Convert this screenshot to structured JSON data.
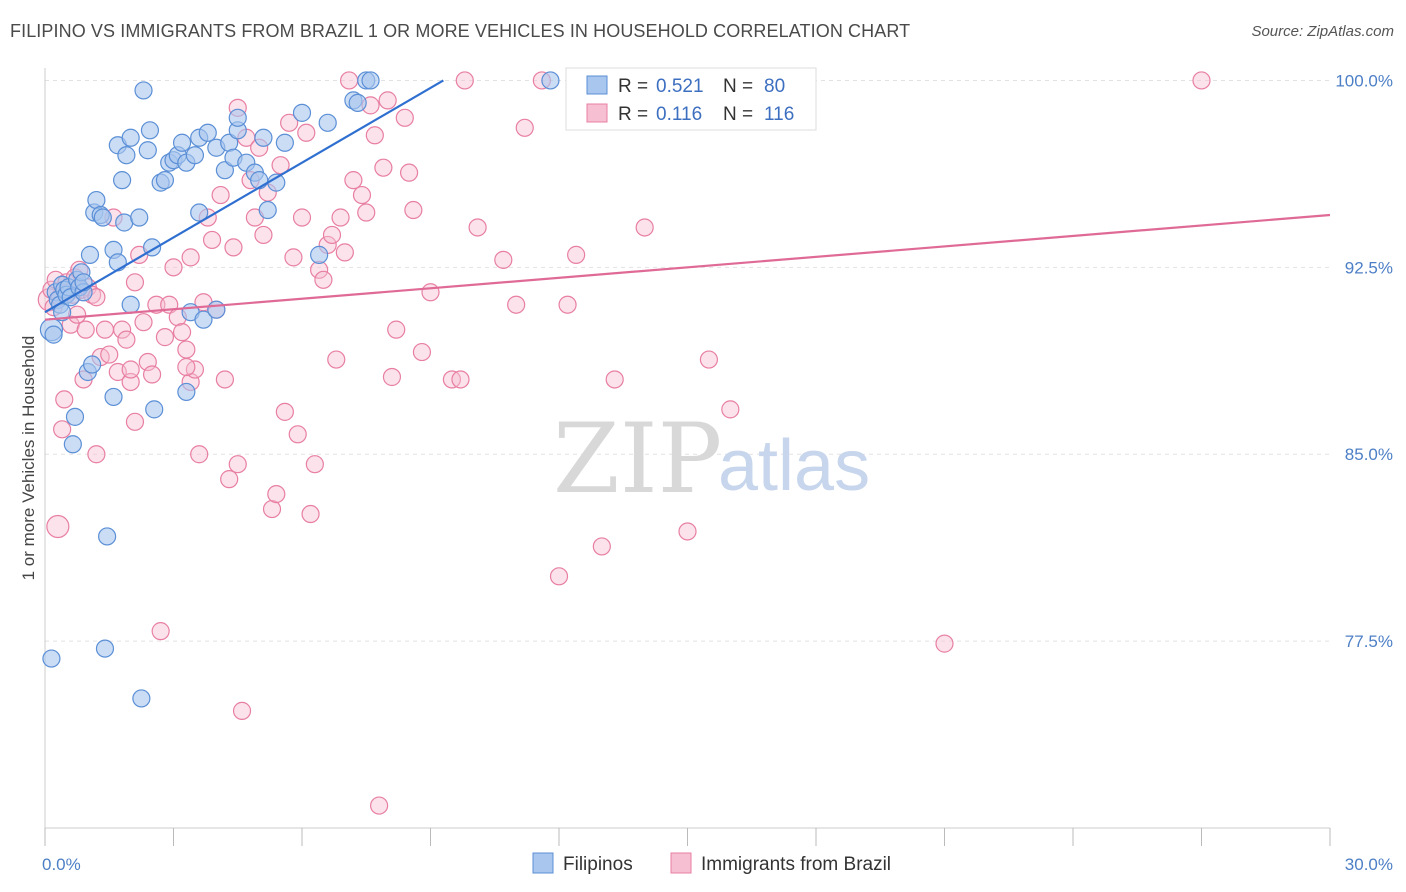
{
  "title": "FILIPINO VS IMMIGRANTS FROM BRAZIL 1 OR MORE VEHICLES IN HOUSEHOLD CORRELATION CHART",
  "source": "Source: ZipAtlas.com",
  "watermark": {
    "zip": "ZIP",
    "atlas": "atlas"
  },
  "colors": {
    "filipinos_fill": "#a9c6ef",
    "filipinos_stroke": "#5b8fd6",
    "filipinos_line": "#2f6fd0",
    "brazil_fill": "#f7bfd2",
    "brazil_stroke": "#e87fa3",
    "brazil_line": "#e06a96",
    "grid": "#e2e2e2",
    "axis_label": "#4d7fc6"
  },
  "legend": {
    "rows": [
      {
        "r_label": "R =",
        "r_value": "0.521",
        "n_label": "N =",
        "n_value": "80"
      },
      {
        "r_label": "R =",
        "r_value": "0.116",
        "n_label": "N =",
        "n_value": "116"
      }
    ]
  },
  "chart_data": {
    "type": "scatter",
    "xlabel": "",
    "ylabel": "1 or more Vehicles in Household",
    "xlim": [
      0,
      30
    ],
    "ylim": [
      70.0,
      100.5
    ],
    "x_tick_labels": [
      {
        "x": 0,
        "label": "0.0%"
      },
      {
        "x": 30,
        "label": "30.0%"
      }
    ],
    "x_minor_ticks": [
      0,
      3,
      6,
      9,
      12,
      15,
      18,
      21,
      24,
      27,
      30
    ],
    "y_ticks": [
      {
        "y": 100.0,
        "label": "100.0%"
      },
      {
        "y": 92.5,
        "label": "92.5%"
      },
      {
        "y": 85.0,
        "label": "85.0%"
      },
      {
        "y": 77.5,
        "label": "77.5%"
      }
    ],
    "grid": true,
    "legend_position": "top-center",
    "series": [
      {
        "name": "Filipinos",
        "trend": {
          "x": [
            0,
            9.3
          ],
          "y": [
            90.7,
            100.0
          ]
        },
        "points": [
          [
            0.15,
            90.0
          ],
          [
            0.2,
            89.8
          ],
          [
            0.25,
            91.5
          ],
          [
            0.3,
            91.2
          ],
          [
            0.35,
            91.0
          ],
          [
            0.4,
            91.8
          ],
          [
            0.45,
            91.6
          ],
          [
            0.5,
            91.4
          ],
          [
            0.55,
            91.7
          ],
          [
            0.6,
            91.3
          ],
          [
            0.65,
            85.4
          ],
          [
            0.7,
            86.5
          ],
          [
            0.75,
            92.0
          ],
          [
            0.8,
            91.7
          ],
          [
            0.85,
            92.3
          ],
          [
            0.9,
            91.5
          ],
          [
            1.0,
            88.3
          ],
          [
            1.05,
            93.0
          ],
          [
            1.1,
            88.6
          ],
          [
            1.15,
            94.7
          ],
          [
            1.2,
            95.2
          ],
          [
            1.3,
            94.6
          ],
          [
            1.35,
            94.5
          ],
          [
            1.4,
            77.2
          ],
          [
            1.45,
            81.7
          ],
          [
            1.6,
            93.2
          ],
          [
            1.6,
            87.3
          ],
          [
            1.7,
            92.7
          ],
          [
            1.7,
            97.4
          ],
          [
            1.8,
            96.0
          ],
          [
            1.85,
            94.3
          ],
          [
            1.9,
            97.0
          ],
          [
            2.0,
            97.7
          ],
          [
            2.0,
            91.0
          ],
          [
            2.2,
            94.5
          ],
          [
            2.25,
            75.2
          ],
          [
            2.3,
            99.6
          ],
          [
            2.4,
            97.2
          ],
          [
            2.45,
            98.0
          ],
          [
            2.5,
            93.3
          ],
          [
            2.55,
            86.8
          ],
          [
            2.7,
            95.9
          ],
          [
            2.8,
            96.0
          ],
          [
            2.9,
            96.7
          ],
          [
            3.0,
            96.8
          ],
          [
            3.1,
            97.0
          ],
          [
            3.2,
            97.5
          ],
          [
            3.3,
            96.7
          ],
          [
            3.3,
            87.5
          ],
          [
            3.4,
            90.7
          ],
          [
            3.5,
            97.0
          ],
          [
            3.6,
            97.7
          ],
          [
            3.6,
            94.7
          ],
          [
            3.7,
            90.4
          ],
          [
            3.8,
            97.9
          ],
          [
            4.0,
            97.3
          ],
          [
            4.0,
            90.8
          ],
          [
            4.2,
            96.4
          ],
          [
            4.3,
            97.5
          ],
          [
            4.4,
            96.9
          ],
          [
            4.5,
            98.0
          ],
          [
            4.5,
            98.5
          ],
          [
            4.7,
            96.7
          ],
          [
            4.9,
            96.3
          ],
          [
            5.0,
            96.0
          ],
          [
            5.1,
            97.7
          ],
          [
            5.2,
            94.8
          ],
          [
            5.4,
            95.9
          ],
          [
            5.6,
            97.5
          ],
          [
            6.0,
            98.7
          ],
          [
            6.4,
            93.0
          ],
          [
            6.6,
            98.3
          ],
          [
            7.2,
            99.2
          ],
          [
            7.3,
            99.1
          ],
          [
            7.5,
            100.0
          ],
          [
            7.6,
            100.0
          ],
          [
            11.8,
            100.0
          ],
          [
            0.15,
            76.8
          ],
          [
            0.4,
            90.7
          ],
          [
            0.9,
            91.9
          ]
        ]
      },
      {
        "name": "Immigrants from Brazil",
        "trend": {
          "x": [
            0,
            30
          ],
          "y": [
            90.4,
            94.6
          ]
        },
        "points": [
          [
            0.1,
            91.2
          ],
          [
            0.15,
            91.6
          ],
          [
            0.2,
            90.9
          ],
          [
            0.25,
            92.0
          ],
          [
            0.3,
            82.1
          ],
          [
            0.35,
            91.3
          ],
          [
            0.4,
            86.0
          ],
          [
            0.45,
            87.2
          ],
          [
            0.5,
            91.9
          ],
          [
            0.55,
            91.5
          ],
          [
            0.6,
            90.2
          ],
          [
            0.65,
            91.4
          ],
          [
            0.7,
            92.1
          ],
          [
            0.75,
            90.6
          ],
          [
            0.8,
            92.4
          ],
          [
            0.85,
            91.6
          ],
          [
            0.9,
            88.0
          ],
          [
            1.0,
            91.7
          ],
          [
            1.1,
            91.4
          ],
          [
            1.2,
            91.3
          ],
          [
            1.3,
            88.9
          ],
          [
            1.4,
            90.0
          ],
          [
            1.5,
            89.0
          ],
          [
            1.6,
            94.5
          ],
          [
            1.7,
            88.3
          ],
          [
            1.8,
            90.0
          ],
          [
            1.9,
            89.6
          ],
          [
            2.0,
            87.9
          ],
          [
            2.1,
            91.9
          ],
          [
            2.1,
            86.3
          ],
          [
            2.2,
            93.0
          ],
          [
            2.3,
            90.3
          ],
          [
            2.4,
            88.7
          ],
          [
            2.5,
            88.2
          ],
          [
            2.6,
            91.0
          ],
          [
            2.7,
            77.9
          ],
          [
            2.8,
            89.7
          ],
          [
            2.9,
            91.0
          ],
          [
            3.0,
            92.5
          ],
          [
            3.1,
            90.5
          ],
          [
            3.2,
            89.9
          ],
          [
            3.3,
            89.2
          ],
          [
            3.4,
            87.9
          ],
          [
            3.4,
            92.9
          ],
          [
            3.5,
            88.4
          ],
          [
            3.6,
            85.0
          ],
          [
            3.7,
            91.1
          ],
          [
            3.8,
            94.5
          ],
          [
            3.9,
            93.6
          ],
          [
            4.0,
            90.8
          ],
          [
            4.1,
            95.4
          ],
          [
            4.2,
            88.0
          ],
          [
            4.3,
            84.0
          ],
          [
            4.4,
            93.3
          ],
          [
            4.5,
            84.6
          ],
          [
            4.6,
            74.7
          ],
          [
            4.7,
            97.7
          ],
          [
            4.8,
            96.0
          ],
          [
            4.9,
            94.5
          ],
          [
            5.0,
            97.3
          ],
          [
            5.1,
            93.8
          ],
          [
            5.2,
            95.5
          ],
          [
            5.3,
            82.8
          ],
          [
            5.4,
            83.4
          ],
          [
            5.5,
            96.6
          ],
          [
            5.6,
            86.7
          ],
          [
            5.7,
            98.3
          ],
          [
            5.8,
            92.9
          ],
          [
            5.9,
            85.8
          ],
          [
            6.0,
            94.5
          ],
          [
            6.1,
            97.9
          ],
          [
            6.2,
            82.6
          ],
          [
            6.3,
            84.6
          ],
          [
            6.4,
            92.4
          ],
          [
            6.5,
            92.0
          ],
          [
            6.6,
            93.4
          ],
          [
            6.7,
            93.8
          ],
          [
            6.8,
            88.8
          ],
          [
            6.9,
            94.5
          ],
          [
            7.0,
            93.1
          ],
          [
            7.2,
            96.0
          ],
          [
            7.4,
            95.4
          ],
          [
            7.5,
            94.7
          ],
          [
            7.6,
            99.0
          ],
          [
            7.7,
            97.8
          ],
          [
            7.8,
            70.9
          ],
          [
            7.9,
            96.5
          ],
          [
            8.0,
            99.2
          ],
          [
            8.1,
            88.1
          ],
          [
            8.2,
            90.0
          ],
          [
            8.4,
            98.5
          ],
          [
            8.5,
            96.3
          ],
          [
            8.6,
            94.8
          ],
          [
            8.8,
            89.1
          ],
          [
            9.0,
            91.5
          ],
          [
            9.5,
            88.0
          ],
          [
            9.7,
            88.0
          ],
          [
            10.1,
            94.1
          ],
          [
            10.7,
            92.8
          ],
          [
            11.0,
            91.0
          ],
          [
            11.2,
            98.1
          ],
          [
            11.6,
            100.0
          ],
          [
            12.0,
            80.1
          ],
          [
            12.2,
            91.0
          ],
          [
            12.4,
            93.0
          ],
          [
            13.0,
            81.3
          ],
          [
            13.3,
            88.0
          ],
          [
            14.0,
            94.1
          ],
          [
            15.0,
            81.9
          ],
          [
            15.5,
            88.8
          ],
          [
            16.0,
            86.8
          ],
          [
            21.0,
            77.4
          ],
          [
            27.0,
            100.0
          ],
          [
            9.8,
            100.0
          ],
          [
            7.1,
            100.0
          ],
          [
            4.5,
            98.9
          ],
          [
            2.0,
            88.4
          ],
          [
            1.2,
            85.0
          ],
          [
            0.95,
            90.0
          ],
          [
            3.3,
            88.5
          ]
        ]
      }
    ]
  },
  "bottom_legend": [
    {
      "label": "Filipinos"
    },
    {
      "label": "Immigrants from Brazil"
    }
  ]
}
